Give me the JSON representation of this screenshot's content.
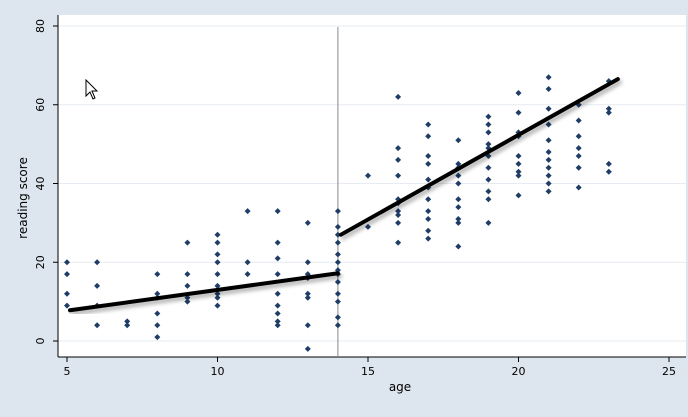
{
  "chart_data": {
    "type": "scatter",
    "xlabel": "age",
    "ylabel": "reading score",
    "xlim": [
      5,
      25
    ],
    "ylim": [
      -5,
      82
    ],
    "xticks": [
      5,
      10,
      15,
      20,
      25
    ],
    "yticks": [
      0,
      20,
      40,
      60,
      80
    ],
    "grid": true,
    "cutoff_x": 14,
    "series": [
      {
        "type": "scatter",
        "marker_color": "#1f3d66",
        "points": [
          [
            5,
            20
          ],
          [
            5,
            17
          ],
          [
            5,
            12
          ],
          [
            5,
            9
          ],
          [
            6,
            20
          ],
          [
            6,
            14
          ],
          [
            6,
            9
          ],
          [
            6,
            4
          ],
          [
            7,
            5
          ],
          [
            7,
            4
          ],
          [
            8,
            17
          ],
          [
            8,
            12
          ],
          [
            8,
            11
          ],
          [
            8,
            7
          ],
          [
            8,
            4
          ],
          [
            8,
            1
          ],
          [
            9,
            25
          ],
          [
            9,
            17
          ],
          [
            9,
            14
          ],
          [
            9,
            11
          ],
          [
            9,
            10
          ],
          [
            10,
            27
          ],
          [
            10,
            25
          ],
          [
            10,
            22
          ],
          [
            10,
            20
          ],
          [
            10,
            17
          ],
          [
            10,
            14
          ],
          [
            10,
            13
          ],
          [
            10,
            12
          ],
          [
            10,
            11
          ],
          [
            10,
            9
          ],
          [
            11,
            33
          ],
          [
            11,
            20
          ],
          [
            11,
            17
          ],
          [
            12,
            33
          ],
          [
            12,
            25
          ],
          [
            12,
            21
          ],
          [
            12,
            17
          ],
          [
            12,
            12
          ],
          [
            12,
            9
          ],
          [
            12,
            7
          ],
          [
            12,
            5
          ],
          [
            12,
            4
          ],
          [
            13,
            30
          ],
          [
            13,
            20
          ],
          [
            13,
            17
          ],
          [
            13,
            16
          ],
          [
            13,
            12
          ],
          [
            13,
            11
          ],
          [
            13,
            4
          ],
          [
            13,
            -2
          ],
          [
            14,
            33
          ],
          [
            14,
            29
          ],
          [
            14,
            27
          ],
          [
            14,
            25
          ],
          [
            14,
            22
          ],
          [
            14,
            20
          ],
          [
            14,
            18
          ],
          [
            14,
            17
          ],
          [
            14,
            15
          ],
          [
            14,
            12
          ],
          [
            14,
            10
          ],
          [
            14,
            6
          ],
          [
            14,
            4
          ],
          [
            15,
            42
          ],
          [
            15,
            29
          ],
          [
            16,
            62
          ],
          [
            16,
            49
          ],
          [
            16,
            46
          ],
          [
            16,
            42
          ],
          [
            16,
            36
          ],
          [
            16,
            35
          ],
          [
            16,
            33
          ],
          [
            16,
            32
          ],
          [
            16,
            30
          ],
          [
            16,
            25
          ],
          [
            17,
            55
          ],
          [
            17,
            52
          ],
          [
            17,
            47
          ],
          [
            17,
            45
          ],
          [
            17,
            41
          ],
          [
            17,
            39
          ],
          [
            17,
            36
          ],
          [
            17,
            33
          ],
          [
            17,
            31
          ],
          [
            17,
            28
          ],
          [
            17,
            26
          ],
          [
            18,
            51
          ],
          [
            18,
            45
          ],
          [
            18,
            44
          ],
          [
            18,
            42
          ],
          [
            18,
            40
          ],
          [
            18,
            36
          ],
          [
            18,
            34
          ],
          [
            18,
            31
          ],
          [
            18,
            30
          ],
          [
            18,
            24
          ],
          [
            19,
            57
          ],
          [
            19,
            55
          ],
          [
            19,
            53
          ],
          [
            19,
            50
          ],
          [
            19,
            49
          ],
          [
            19,
            47
          ],
          [
            19,
            44
          ],
          [
            19,
            41
          ],
          [
            19,
            38
          ],
          [
            19,
            36
          ],
          [
            19,
            30
          ],
          [
            20,
            63
          ],
          [
            20,
            58
          ],
          [
            20,
            53
          ],
          [
            20,
            52
          ],
          [
            20,
            47
          ],
          [
            20,
            45
          ],
          [
            20,
            43
          ],
          [
            20,
            42
          ],
          [
            20,
            37
          ],
          [
            21,
            67
          ],
          [
            21,
            64
          ],
          [
            21,
            59
          ],
          [
            21,
            55
          ],
          [
            21,
            51
          ],
          [
            21,
            48
          ],
          [
            21,
            46
          ],
          [
            21,
            44
          ],
          [
            21,
            42
          ],
          [
            21,
            40
          ],
          [
            21,
            38
          ],
          [
            22,
            60
          ],
          [
            22,
            56
          ],
          [
            22,
            52
          ],
          [
            22,
            49
          ],
          [
            22,
            47
          ],
          [
            22,
            44
          ],
          [
            22,
            39
          ],
          [
            23,
            66
          ],
          [
            23,
            59
          ],
          [
            23,
            58
          ],
          [
            23,
            45
          ],
          [
            23,
            43
          ]
        ]
      },
      {
        "type": "line",
        "line_color": "#000000",
        "points": [
          [
            5.1,
            7.8
          ],
          [
            14.0,
            17.2
          ]
        ]
      },
      {
        "type": "line",
        "line_color": "#000000",
        "points": [
          [
            14.1,
            27.0
          ],
          [
            23.3,
            66.5
          ]
        ]
      }
    ]
  },
  "colors": {
    "background": "#dde6ee",
    "plot_area": "#ffffff",
    "gridline": "#e6ecf2",
    "marker": "#1f3d66",
    "fit_line": "#000000",
    "cutoff_line": "#888888"
  },
  "icons": {
    "cursor": "mouse-pointer-icon"
  }
}
